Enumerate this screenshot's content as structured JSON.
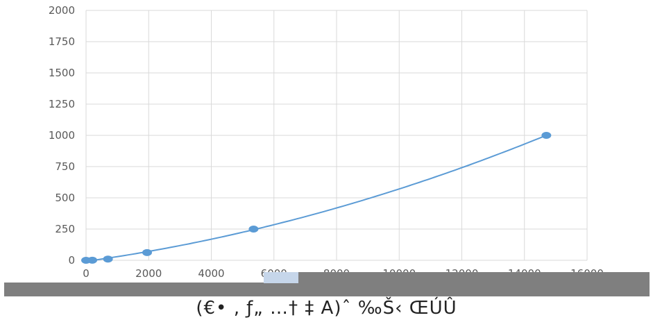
{
  "chart_data": {
    "type": "scatter",
    "x_ticks": [
      "0",
      "2000",
      "4000",
      "6000",
      "8000",
      "10000",
      "12000",
      "14000",
      "16000"
    ],
    "y_ticks": [
      "0",
      "250",
      "500",
      "750",
      "1000",
      "1250",
      "1500",
      "1750",
      "2000"
    ],
    "xlim": [
      0,
      16000
    ],
    "ylim": [
      0,
      2000
    ],
    "grid": true,
    "series": [
      {
        "points": [
          {
            "x": 0,
            "y": 0
          },
          {
            "x": 200,
            "y": 1
          },
          {
            "x": 700,
            "y": 10
          },
          {
            "x": 1950,
            "y": 62
          },
          {
            "x": 5350,
            "y": 250
          },
          {
            "x": 14700,
            "y": 1000
          }
        ],
        "trendline": "quadratic",
        "color": "#5b9bd5"
      }
    ]
  },
  "caption": "(€• ‚ ƒ„ …† ‡ A)ˆ ‰Š‹ ŒÚÛ"
}
